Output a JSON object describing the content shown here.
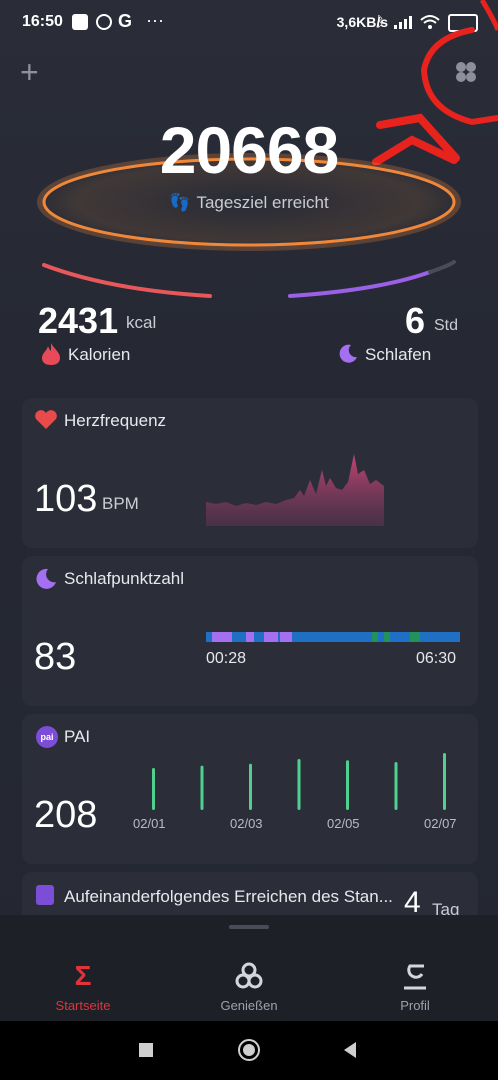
{
  "status_bar": {
    "time": "16:50",
    "network_speed": "3,6KB/s",
    "dots": "···"
  },
  "top": {
    "add_label": "+",
    "steps": "20668",
    "goal_text": "Tagesziel erreicht"
  },
  "calories": {
    "value": "2431",
    "unit": "kcal",
    "label": "Kalorien"
  },
  "sleep": {
    "value": "6",
    "unit": "Std",
    "label": "Schlafen"
  },
  "heart": {
    "title": "Herzfrequenz",
    "value": "103",
    "unit": "BPM"
  },
  "sleep_score": {
    "title": "Schlafpunktzahl",
    "value": "83",
    "start": "00:28",
    "end": "06:30"
  },
  "pai": {
    "title": "PAI",
    "icon_text": "pai",
    "value": "208",
    "dates": [
      "02/01",
      "02/03",
      "02/05",
      "02/07"
    ],
    "bars": [
      0.7,
      0.74,
      0.77,
      0.85,
      0.83,
      0.8,
      0.95
    ]
  },
  "streak": {
    "title": "Aufeinanderfolgendes Erreichen des Stan...",
    "value": "4",
    "unit": "Tag"
  },
  "nav": {
    "home": "Startseite",
    "enjoy": "Genießen",
    "profile": "Profil"
  },
  "colors": {
    "accent_orange": "#f0883a",
    "nav_active": "#e0343a",
    "pai_green": "#4fd08f",
    "heart_red": "#e94a4a",
    "sleep_purple": "#a46ff0"
  }
}
